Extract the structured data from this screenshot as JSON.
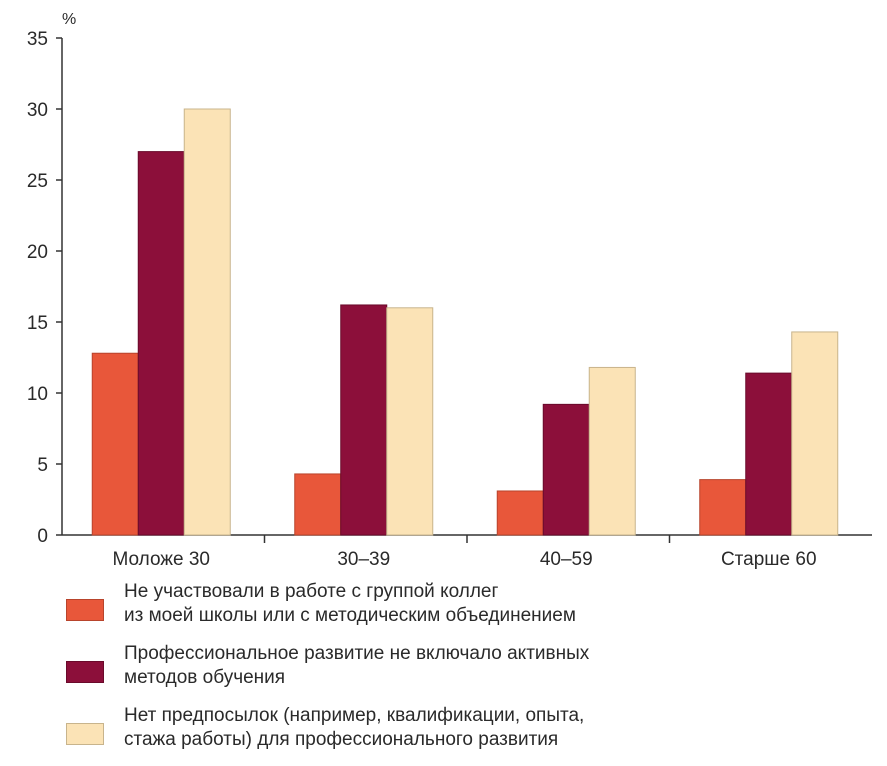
{
  "chart_data": {
    "type": "bar",
    "unit": "%",
    "categories": [
      "Моложе 30",
      "30–39",
      "40–59",
      "Старше 60"
    ],
    "series": [
      {
        "name": "Не участвовали в работе с группой коллег\nиз моей школы или с методическим объединением",
        "color": "#e8573a",
        "stroke": "#b8442c",
        "values": [
          12.8,
          4.3,
          3.1,
          3.9
        ]
      },
      {
        "name": "Профессиональное развитие не включало активных\nметодов обучения",
        "color": "#8c0f3a",
        "stroke": "#6a0a2b",
        "values": [
          27.0,
          16.2,
          9.2,
          11.4
        ]
      },
      {
        "name": "Нет предпосылок (например, квалификации, опыта,\nстажа работы) для профессионального развития",
        "color": "#fbe3b6",
        "stroke": "#c8b48c",
        "values": [
          30.0,
          16.0,
          11.8,
          14.3
        ]
      }
    ],
    "ylim": [
      0,
      35
    ],
    "yticks": [
      0,
      5,
      10,
      15,
      20,
      25,
      30,
      35
    ],
    "grid": false,
    "legend_position": "bottom"
  }
}
